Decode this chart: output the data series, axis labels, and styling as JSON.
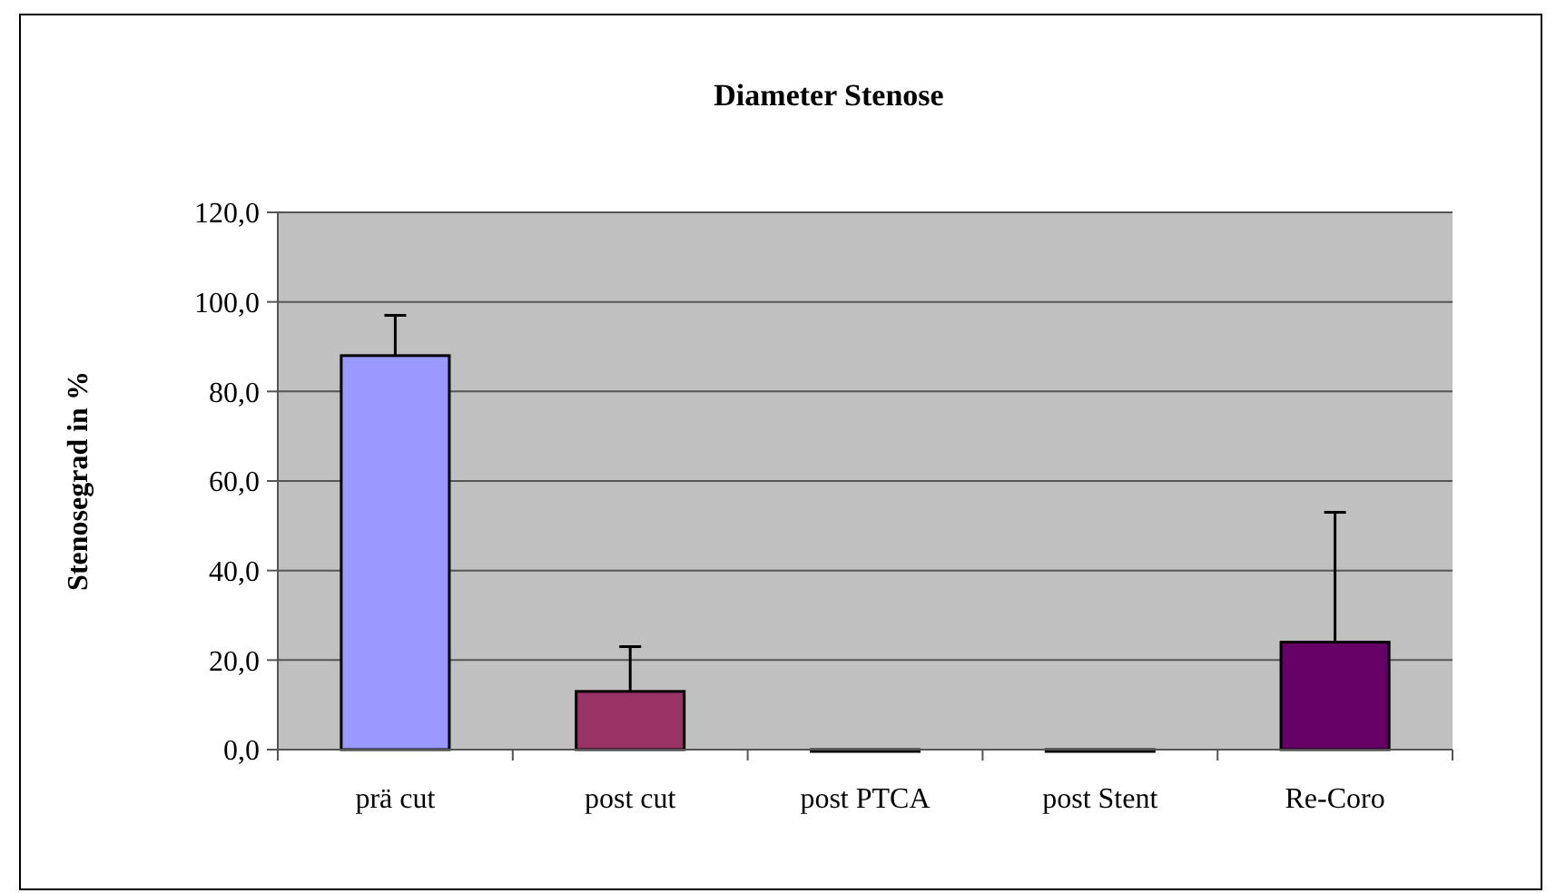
{
  "chart_data": {
    "type": "bar",
    "title": "Diameter Stenose",
    "ylabel": "Stenosegrad in %",
    "categories": [
      "prä cut",
      "post cut",
      "post PTCA",
      "post Stent",
      "Re-Coro"
    ],
    "values": [
      88,
      13,
      0,
      0,
      24
    ],
    "colors": [
      "#9999ff",
      "#993366",
      "#9999ff",
      "#9999ff",
      "#660066"
    ],
    "errors": [
      [
        88,
        97
      ],
      [
        13,
        23
      ],
      null,
      null,
      [
        24,
        53
      ]
    ],
    "ylim": [
      0,
      120
    ],
    "yticks": [
      {
        "value": 0,
        "label": "0,0"
      },
      {
        "value": 20,
        "label": "20,0"
      },
      {
        "value": 40,
        "label": "40,0"
      },
      {
        "value": 60,
        "label": "60,0"
      },
      {
        "value": 80,
        "label": "80,0"
      },
      {
        "value": 100,
        "label": "100,0"
      },
      {
        "value": 120,
        "label": "120,0"
      }
    ],
    "grid": "y"
  }
}
